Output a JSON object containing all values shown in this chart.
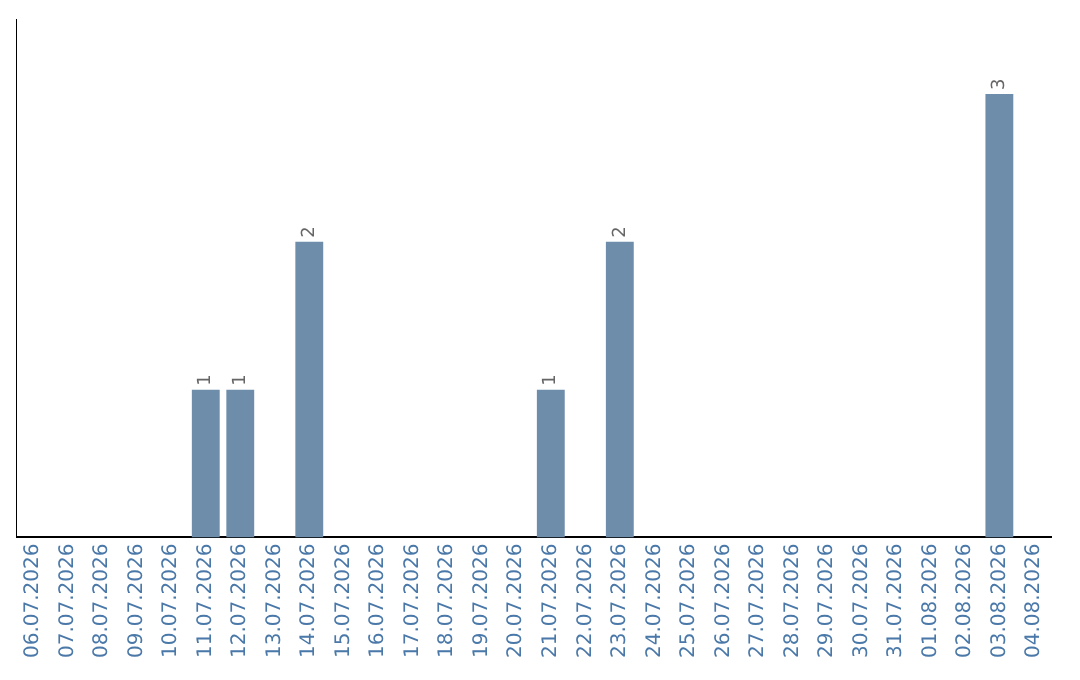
{
  "chart_data": {
    "type": "bar",
    "categories": [
      "06.07.2026",
      "07.07.2026",
      "08.07.2026",
      "09.07.2026",
      "10.07.2026",
      "11.07.2026",
      "12.07.2026",
      "13.07.2026",
      "14.07.2026",
      "15.07.2026",
      "16.07.2026",
      "17.07.2026",
      "18.07.2026",
      "19.07.2026",
      "20.07.2026",
      "21.07.2026",
      "22.07.2026",
      "23.07.2026",
      "24.07.2026",
      "25.07.2026",
      "26.07.2026",
      "27.07.2026",
      "28.07.2026",
      "29.07.2026",
      "30.07.2026",
      "31.07.2026",
      "01.08.2026",
      "02.08.2026",
      "03.08.2026",
      "04.08.2026"
    ],
    "values": [
      0,
      0,
      0,
      0,
      0,
      1,
      1,
      0,
      2,
      0,
      0,
      0,
      0,
      0,
      0,
      1,
      0,
      2,
      0,
      0,
      0,
      0,
      0,
      0,
      0,
      0,
      0,
      0,
      3,
      0
    ],
    "value_labels": [
      null,
      null,
      null,
      null,
      null,
      "1",
      "1",
      null,
      "2",
      null,
      null,
      null,
      null,
      null,
      null,
      "1",
      null,
      "2",
      null,
      null,
      null,
      null,
      null,
      null,
      null,
      null,
      null,
      null,
      "3",
      null
    ],
    "color": "#6e8dab",
    "grid": false,
    "legend": false
  }
}
